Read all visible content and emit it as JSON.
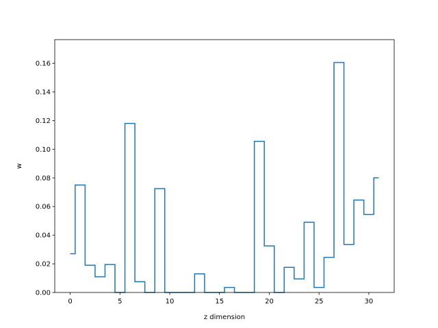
{
  "chart_data": {
    "type": "line",
    "drawstyle": "steps-mid",
    "xlabel": "z dimension",
    "ylabel": "w",
    "xlim": [
      -1.55,
      32.55
    ],
    "ylim": [
      0,
      0.1765
    ],
    "xticks": [
      0,
      5,
      10,
      15,
      20,
      25,
      30
    ],
    "yticks": [
      0.0,
      0.02,
      0.04,
      0.06,
      0.08,
      0.1,
      0.12,
      0.14,
      0.16
    ],
    "grid": false,
    "color": "#1f77b4",
    "x": [
      0,
      1,
      2,
      3,
      4,
      5,
      6,
      7,
      8,
      9,
      10,
      11,
      12,
      13,
      14,
      15,
      16,
      17,
      18,
      19,
      20,
      21,
      22,
      23,
      24,
      25,
      26,
      27,
      28,
      29,
      30,
      31
    ],
    "y": [
      0.027,
      0.075,
      0.019,
      0.011,
      0.0195,
      0.0,
      0.118,
      0.0075,
      0.0,
      0.0725,
      0.0,
      0.0,
      0.0,
      0.013,
      0.0,
      0.0,
      0.0035,
      0.0,
      0.0,
      0.1055,
      0.0325,
      0.0,
      0.0175,
      0.0095,
      0.049,
      0.0035,
      0.0245,
      0.1605,
      0.0335,
      0.0645,
      0.0545,
      0.08
    ]
  }
}
